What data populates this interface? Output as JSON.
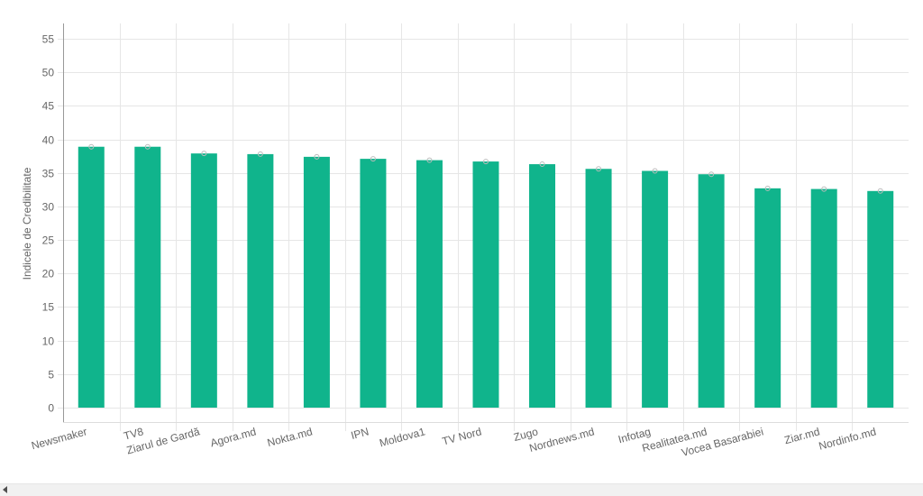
{
  "chart_data": {
    "type": "bar",
    "categories": [
      "Newsmaker",
      "TV8",
      "Ziarul de Gardă",
      "Agora.md",
      "Nokta.md",
      "IPN",
      "Moldova1",
      "TV Nord",
      "Zugo",
      "Nordnews.md",
      "Infotag",
      "Realitatea.md",
      "Vocea Basarabiei",
      "Ziar.md",
      "Nordinfo.md"
    ],
    "values": [
      38.9,
      38.9,
      37.9,
      37.8,
      37.4,
      37.1,
      36.9,
      36.7,
      36.3,
      35.6,
      35.3,
      34.8,
      32.7,
      32.6,
      32.3
    ],
    "ylabel": "Indicele de Credibilitate",
    "xlabel": "",
    "ylim": [
      0,
      55
    ],
    "yticks": [
      0,
      5,
      10,
      15,
      20,
      25,
      30,
      35,
      40,
      45,
      50,
      55
    ],
    "grid": true,
    "bar_color": "#10b48c",
    "error_marker_color": "#bbbbbb"
  },
  "scrollbar": {
    "left_arrow_icon": "chevron-left-icon"
  }
}
